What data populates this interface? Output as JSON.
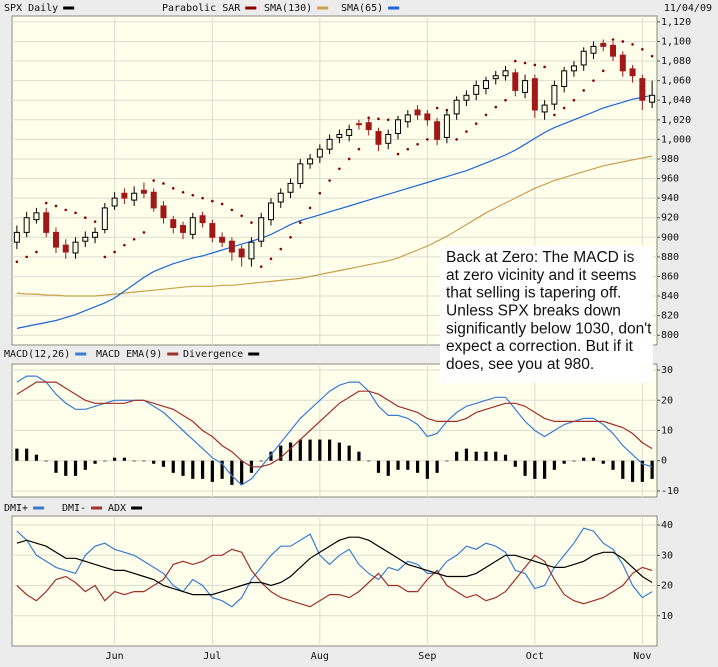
{
  "chart_data": [
    {
      "type": "candlestick",
      "title": "SPX Daily",
      "color": "#000000",
      "date": "11/04/09",
      "up_color": "#000000",
      "down_color": "#a01818",
      "grid": true,
      "annotation": [
        "Back at Zero: The MACD is",
        "at zero vicinity and it seems",
        "that selling is tapering off.",
        "Unless SPX breaks down",
        "significantly below 1030, don't",
        "expect a correction.  But if it",
        "does, see you at 980."
      ],
      "categories": [
        null,
        null,
        null,
        null,
        null,
        null,
        null,
        null,
        null,
        null,
        "Jun",
        null,
        null,
        null,
        null,
        null,
        null,
        null,
        null,
        null,
        "Jul",
        null,
        null,
        null,
        null,
        null,
        null,
        null,
        null,
        null,
        null,
        "Aug",
        null,
        null,
        null,
        null,
        null,
        null,
        null,
        null,
        null,
        null,
        "Sep",
        null,
        null,
        null,
        null,
        null,
        null,
        null,
        null,
        null,
        null,
        "Oct",
        null,
        null,
        null,
        null,
        null,
        null,
        null,
        null,
        null,
        null,
        "Nov",
        null
      ],
      "open": [
        895,
        905,
        918,
        925,
        905,
        892,
        884,
        896,
        900,
        908,
        932,
        945,
        938,
        948,
        946,
        932,
        918,
        912,
        903,
        922,
        914,
        900,
        896,
        888,
        878,
        896,
        918,
        936,
        946,
        955,
        975,
        982,
        990,
        1002,
        1004,
        1016,
        1017,
        1008,
        996,
        1006,
        1018,
        1030,
        1026,
        1018,
        1002,
        1026,
        1040,
        1046,
        1052,
        1062,
        1065,
        1068,
        1048,
        1062,
        1028,
        1036,
        1054,
        1070,
        1076,
        1088,
        1098,
        1096,
        1086,
        1072,
        1062,
        1038
      ],
      "high": [
        912,
        926,
        930,
        930,
        910,
        898,
        900,
        906,
        910,
        935,
        946,
        950,
        952,
        956,
        950,
        937,
        922,
        916,
        925,
        926,
        918,
        905,
        900,
        892,
        900,
        925,
        940,
        950,
        960,
        980,
        985,
        995,
        1005,
        1010,
        1015,
        1020,
        1022,
        1012,
        1010,
        1024,
        1030,
        1035,
        1030,
        1022,
        1030,
        1044,
        1050,
        1060,
        1064,
        1070,
        1075,
        1072,
        1066,
        1066,
        1040,
        1060,
        1074,
        1080,
        1094,
        1100,
        1102,
        1100,
        1090,
        1076,
        1066,
        1060
      ],
      "low": [
        888,
        900,
        914,
        900,
        884,
        878,
        878,
        890,
        894,
        904,
        928,
        934,
        932,
        940,
        926,
        914,
        904,
        898,
        898,
        910,
        895,
        890,
        876,
        870,
        870,
        890,
        912,
        930,
        940,
        950,
        970,
        976,
        985,
        996,
        998,
        1010,
        1004,
        988,
        990,
        1000,
        1012,
        1020,
        1014,
        994,
        996,
        1020,
        1034,
        1040,
        1046,
        1056,
        1060,
        1044,
        1042,
        1022,
        1020,
        1030,
        1048,
        1064,
        1070,
        1082,
        1090,
        1080,
        1064,
        1058,
        1030,
        1032
      ],
      "close": [
        905,
        920,
        925,
        905,
        890,
        885,
        895,
        900,
        905,
        930,
        940,
        940,
        945,
        945,
        930,
        920,
        910,
        905,
        920,
        915,
        900,
        895,
        885,
        880,
        895,
        920,
        935,
        945,
        955,
        975,
        980,
        990,
        1000,
        1005,
        1010,
        1015,
        1010,
        995,
        1005,
        1020,
        1025,
        1025,
        1020,
        1000,
        1025,
        1040,
        1045,
        1055,
        1060,
        1065,
        1070,
        1050,
        1060,
        1030,
        1035,
        1055,
        1070,
        1075,
        1090,
        1095,
        1095,
        1085,
        1070,
        1065,
        1040,
        1045
      ],
      "series": [
        {
          "name": "Parabolic SAR",
          "color": "#8b0000",
          "style": "dots",
          "values": [
            875,
            880,
            885,
            935,
            932,
            928,
            925,
            920,
            916,
            880,
            885,
            892,
            898,
            905,
            958,
            955,
            950,
            946,
            943,
            940,
            937,
            934,
            928,
            922,
            915,
            870,
            878,
            888,
            900,
            915,
            930,
            945,
            958,
            970,
            980,
            990,
            1022,
            1021,
            1020,
            985,
            990,
            995,
            1000,
            1032,
            1030,
            1000,
            1008,
            1016,
            1025,
            1033,
            1040,
            1080,
            1078,
            1076,
            1074,
            1025,
            1032,
            1040,
            1050,
            1060,
            1070,
            1102,
            1100,
            1097,
            1092,
            1085
          ]
        },
        {
          "name": "SMA(130)",
          "color": "#c8a050",
          "style": "line",
          "values": [
            843,
            842,
            842,
            841,
            841,
            840,
            840,
            840,
            840,
            841,
            842,
            843,
            844,
            845,
            846,
            847,
            848,
            849,
            850,
            850,
            850,
            851,
            851,
            852,
            853,
            854,
            855,
            856,
            857,
            858,
            860,
            862,
            864,
            866,
            868,
            870,
            872,
            874,
            876,
            879,
            883,
            887,
            891,
            896,
            901,
            907,
            913,
            919,
            925,
            930,
            935,
            940,
            945,
            950,
            954,
            958,
            961,
            964,
            967,
            970,
            973,
            975,
            977,
            979,
            981,
            983
          ]
        },
        {
          "name": "SMA(65)",
          "color": "#1e64dc",
          "style": "line",
          "values": [
            807,
            809,
            811,
            813,
            815,
            818,
            821,
            825,
            829,
            833,
            838,
            845,
            852,
            859,
            865,
            869,
            873,
            876,
            879,
            881,
            884,
            887,
            890,
            893,
            896,
            899,
            903,
            908,
            913,
            917,
            920,
            923,
            926,
            929,
            932,
            935,
            938,
            941,
            944,
            947,
            950,
            953,
            956,
            959,
            962,
            965,
            968,
            972,
            976,
            980,
            984,
            989,
            995,
            1001,
            1007,
            1012,
            1016,
            1020,
            1024,
            1028,
            1032,
            1035,
            1038,
            1041,
            1043,
            1045
          ]
        }
      ],
      "ylim": [
        790,
        1126
      ],
      "yticks": [
        800,
        820,
        840,
        860,
        880,
        900,
        920,
        940,
        960,
        980,
        {
          "value": 1000,
          "label": "1,000"
        },
        {
          "value": 1020,
          "label": "1,020"
        },
        {
          "value": 1040,
          "label": "1,040"
        },
        {
          "value": 1060,
          "label": "1,060"
        },
        {
          "value": 1080,
          "label": "1,080"
        },
        {
          "value": 1100,
          "label": "1,100"
        },
        {
          "value": 1120,
          "label": "1,120"
        }
      ]
    },
    {
      "type": "macd",
      "grid": true,
      "series": [
        {
          "name": "MACD(12,26)",
          "color": "#3a7bd5",
          "style": "line",
          "values": [
            26,
            28,
            28,
            26,
            22,
            19,
            17,
            17,
            18,
            19,
            20,
            20,
            20,
            20,
            18,
            16,
            13,
            10,
            7,
            4,
            1,
            -1,
            -5,
            -8,
            -6,
            -2,
            2,
            6,
            10,
            14,
            17,
            20,
            23,
            25,
            26,
            26,
            23,
            18,
            15,
            15,
            14,
            12,
            8,
            9,
            13,
            16,
            18,
            19,
            20,
            21,
            21,
            17,
            13,
            10,
            8,
            10,
            12,
            13,
            14,
            14,
            12,
            9,
            5,
            2,
            -1,
            -2
          ]
        },
        {
          "name": "MACD EMA(9)",
          "color": "#a0302a",
          "style": "line",
          "values": [
            22,
            24,
            26,
            26,
            26,
            24,
            22,
            20,
            19,
            19,
            19,
            19,
            20,
            20,
            19,
            18,
            17,
            15,
            13,
            10,
            8,
            5,
            3,
            0,
            -2,
            -2,
            -1,
            1,
            4,
            7,
            10,
            13,
            16,
            19,
            21,
            23,
            23,
            22,
            20,
            18,
            17,
            16,
            14,
            13,
            13,
            13,
            14,
            16,
            17,
            18,
            19,
            19,
            18,
            16,
            14,
            13,
            13,
            13,
            13,
            13,
            13,
            12,
            11,
            9,
            6,
            4
          ]
        },
        {
          "name": "Divergence",
          "color": "#000000",
          "style": "bar",
          "values": [
            4,
            4,
            2,
            0,
            -4,
            -5,
            -5,
            -3,
            -1,
            0,
            1,
            1,
            0,
            0,
            -1,
            -2,
            -4,
            -5,
            -6,
            -6,
            -7,
            -6,
            -8,
            -8,
            -4,
            0,
            3,
            5,
            6,
            7,
            7,
            7,
            7,
            6,
            5,
            3,
            0,
            -4,
            -5,
            -3,
            -3,
            -4,
            -6,
            -4,
            0,
            3,
            4,
            3,
            3,
            3,
            2,
            -2,
            -5,
            -6,
            -6,
            -3,
            -1,
            0,
            1,
            1,
            -1,
            -3,
            -6,
            -7,
            -7,
            -6
          ]
        }
      ],
      "ylim": [
        -12,
        32
      ],
      "yticks": [
        30,
        20,
        10,
        0,
        -10
      ]
    },
    {
      "type": "dmi",
      "grid": true,
      "series": [
        {
          "name": "DMI+",
          "color": "#3a7bd5",
          "style": "line",
          "values": [
            38,
            35,
            30,
            28,
            26,
            25,
            24,
            30,
            33,
            34,
            32,
            31,
            30,
            28,
            26,
            24,
            20,
            18,
            22,
            20,
            16,
            15,
            13,
            16,
            22,
            26,
            30,
            33,
            33,
            35,
            37,
            30,
            27,
            30,
            32,
            27,
            24,
            22,
            26,
            25,
            28,
            27,
            24,
            24,
            28,
            30,
            33,
            32,
            34,
            33,
            31,
            25,
            24,
            19,
            20,
            26,
            30,
            34,
            39,
            38,
            34,
            32,
            27,
            20,
            16,
            18
          ]
        },
        {
          "name": "DMI-",
          "color": "#a0302a",
          "style": "line",
          "values": [
            20,
            17,
            15,
            18,
            22,
            23,
            21,
            18,
            20,
            15,
            18,
            17,
            18,
            18,
            20,
            22,
            27,
            28,
            27,
            28,
            30,
            30,
            32,
            31,
            25,
            21,
            18,
            16,
            15,
            14,
            13,
            15,
            17,
            17,
            16,
            18,
            21,
            24,
            20,
            20,
            18,
            18,
            22,
            25,
            20,
            18,
            16,
            17,
            15,
            16,
            18,
            22,
            26,
            30,
            28,
            22,
            17,
            15,
            14,
            15,
            16,
            18,
            20,
            24,
            26,
            25
          ]
        },
        {
          "name": "ADX",
          "color": "#000000",
          "style": "line",
          "values": [
            34,
            35,
            34,
            33,
            31,
            29,
            29,
            28,
            27,
            26,
            25,
            25,
            24,
            23,
            22,
            20,
            19,
            18,
            17,
            17,
            17,
            18,
            19,
            20,
            21,
            21,
            20,
            21,
            23,
            26,
            29,
            31,
            33,
            35,
            36,
            36,
            35,
            33,
            31,
            29,
            27,
            26,
            25,
            24,
            23,
            23,
            23,
            24,
            26,
            28,
            30,
            30,
            29,
            28,
            27,
            26,
            26,
            27,
            28,
            30,
            31,
            31,
            29,
            26,
            23,
            21
          ]
        }
      ],
      "ylim": [
        0,
        43
      ],
      "yticks": [
        40,
        30,
        20,
        10
      ]
    }
  ]
}
